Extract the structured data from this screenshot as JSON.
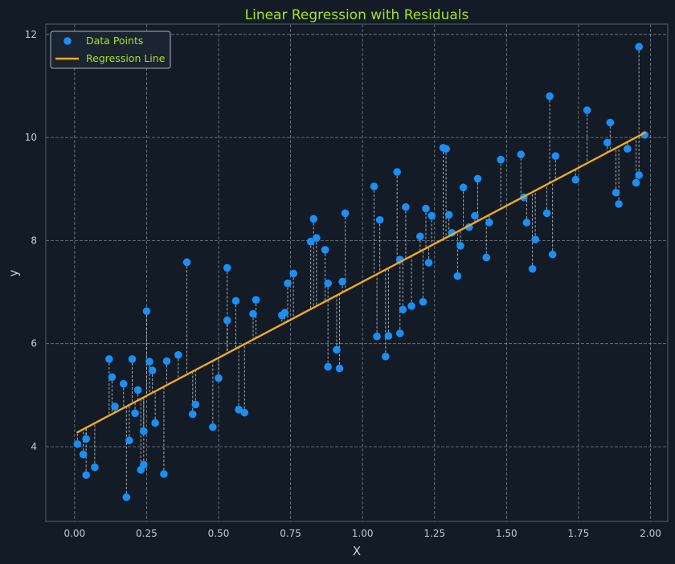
{
  "chart_data": {
    "type": "scatter",
    "title": "Linear Regression with Residuals",
    "xlabel": "X",
    "ylabel": "y",
    "xlim": [
      -0.1,
      2.06
    ],
    "ylim": [
      2.55,
      12.2
    ],
    "x_ticks": [
      0.0,
      0.25,
      0.5,
      0.75,
      1.0,
      1.25,
      1.5,
      1.75,
      2.0
    ],
    "x_tick_labels": [
      "0.00",
      "0.25",
      "0.50",
      "0.75",
      "1.00",
      "1.25",
      "1.50",
      "1.75",
      "2.00"
    ],
    "y_ticks": [
      4,
      6,
      8,
      10,
      12
    ],
    "y_tick_labels": [
      "4",
      "6",
      "8",
      "10",
      "12"
    ],
    "grid": true,
    "legend": {
      "position": "top-left",
      "entries": [
        "Data Points",
        "Regression Line"
      ]
    },
    "colors": {
      "background": "#131b27",
      "points": "#1a8ff4",
      "regression_line": "#f2aa20",
      "title": "#a6e31b",
      "legend_text": "#a6e31b",
      "grid": "#c8d0d9",
      "residual": "#d3d9df"
    },
    "regression_line": {
      "name": "Regression Line",
      "intercept": 4.25,
      "slope": 2.95,
      "x_start": 0.01,
      "x_end": 1.98
    },
    "series": [
      {
        "name": "Data Points",
        "x": [
          0.01,
          0.03,
          0.04,
          0.04,
          0.07,
          0.12,
          0.13,
          0.14,
          0.17,
          0.18,
          0.19,
          0.2,
          0.21,
          0.22,
          0.23,
          0.24,
          0.24,
          0.25,
          0.26,
          0.27,
          0.28,
          0.31,
          0.32,
          0.36,
          0.39,
          0.41,
          0.42,
          0.48,
          0.5,
          0.53,
          0.53,
          0.56,
          0.57,
          0.59,
          0.62,
          0.63,
          0.72,
          0.73,
          0.74,
          0.76,
          0.82,
          0.83,
          0.84,
          0.87,
          0.88,
          0.88,
          0.91,
          0.92,
          0.93,
          0.94,
          1.04,
          1.05,
          1.06,
          1.08,
          1.09,
          1.12,
          1.13,
          1.13,
          1.14,
          1.15,
          1.17,
          1.2,
          1.21,
          1.22,
          1.23,
          1.24,
          1.28,
          1.29,
          1.3,
          1.31,
          1.33,
          1.34,
          1.35,
          1.37,
          1.39,
          1.4,
          1.43,
          1.44,
          1.48,
          1.55,
          1.56,
          1.57,
          1.59,
          1.6,
          1.64,
          1.65,
          1.66,
          1.67,
          1.74,
          1.78,
          1.85,
          1.86,
          1.88,
          1.89,
          1.92,
          1.95,
          1.96,
          1.96,
          1.98
        ],
        "y": [
          4.05,
          3.85,
          4.15,
          3.45,
          3.6,
          5.7,
          5.35,
          4.78,
          5.22,
          3.02,
          4.12,
          5.7,
          4.65,
          5.1,
          3.55,
          4.3,
          3.65,
          6.63,
          5.65,
          5.48,
          4.46,
          3.47,
          5.66,
          5.78,
          7.58,
          4.63,
          4.82,
          4.38,
          5.33,
          6.45,
          7.47,
          6.83,
          4.72,
          4.66,
          6.58,
          6.85,
          6.55,
          6.6,
          7.17,
          7.36,
          7.98,
          8.42,
          8.05,
          7.82,
          5.55,
          7.17,
          5.88,
          5.52,
          7.2,
          8.53,
          9.05,
          6.14,
          8.4,
          5.75,
          6.15,
          9.33,
          6.2,
          7.63,
          6.66,
          8.65,
          6.73,
          8.08,
          6.81,
          8.62,
          7.57,
          8.48,
          9.8,
          9.78,
          8.5,
          8.15,
          7.31,
          7.9,
          9.03,
          8.26,
          8.48,
          9.2,
          7.67,
          8.35,
          9.57,
          9.67,
          8.84,
          8.35,
          7.45,
          8.02,
          8.53,
          10.8,
          7.73,
          9.64,
          9.18,
          10.53,
          9.9,
          10.29,
          8.93,
          8.71,
          9.78,
          9.12,
          11.76,
          9.27,
          10.05
        ]
      }
    ]
  }
}
